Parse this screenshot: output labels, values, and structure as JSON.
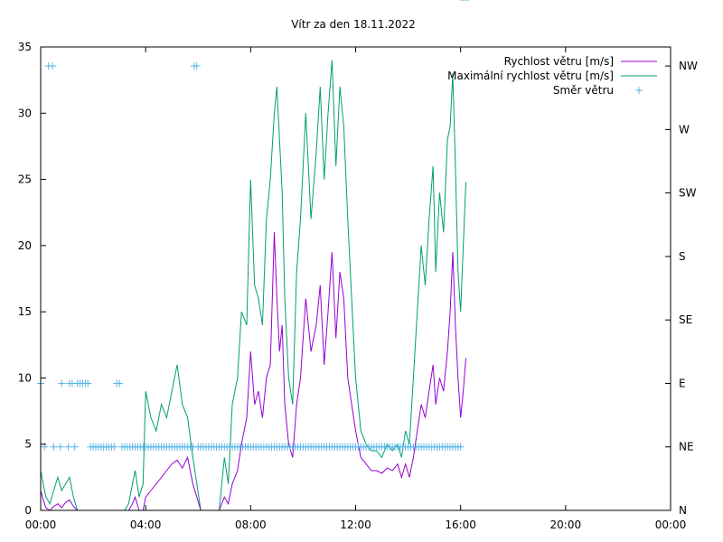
{
  "chart_data": {
    "type": "line",
    "title": "Vítr za den 18.11.2022",
    "xlabel": "",
    "ylabel": "",
    "x_tick_labels": [
      "00:00",
      "04:00",
      "08:00",
      "12:00",
      "16:00",
      "20:00",
      "00:00"
    ],
    "y_tick_labels": [
      "0",
      "5",
      "10",
      "15",
      "20",
      "25",
      "30",
      "35"
    ],
    "y2_tick_labels": [
      "N",
      "NE",
      "E",
      "SE",
      "S",
      "SW",
      "W",
      "NW"
    ],
    "xlim_hours": [
      0,
      24
    ],
    "ylim": [
      0,
      35
    ],
    "y2lim_index": [
      0,
      7.3
    ],
    "grid": false,
    "legend_position": "top-right",
    "colors": {
      "speed": "#9400d3",
      "max_speed": "#009e73",
      "direction": "#56b4e9",
      "axes": "#000000"
    },
    "series": [
      {
        "name": "Rychlost větru [m/s]",
        "color": "#9400d3",
        "x_hours": [
          0.0,
          0.1,
          0.2,
          0.35,
          0.5,
          0.65,
          0.8,
          0.95,
          1.1,
          1.25,
          1.4,
          1.6,
          2.0,
          2.5,
          3.0,
          3.2,
          3.35,
          3.5,
          3.6,
          3.75,
          3.9,
          4.0,
          4.2,
          4.4,
          4.6,
          4.8,
          5.0,
          5.2,
          5.4,
          5.6,
          5.8,
          5.95,
          6.1,
          6.25,
          6.4,
          6.6,
          6.8,
          7.0,
          7.15,
          7.3,
          7.5,
          7.65,
          7.85,
          8.0,
          8.15,
          8.3,
          8.45,
          8.6,
          8.75,
          8.9,
          9.0,
          9.1,
          9.2,
          9.3,
          9.45,
          9.6,
          9.75,
          9.9,
          10.1,
          10.3,
          10.5,
          10.65,
          10.8,
          10.95,
          11.1,
          11.25,
          11.4,
          11.55,
          11.7,
          11.85,
          12.0,
          12.2,
          12.4,
          12.6,
          12.8,
          13.0,
          13.2,
          13.4,
          13.6,
          13.75,
          13.9,
          14.05,
          14.2,
          14.35,
          14.5,
          14.65,
          14.8,
          14.95,
          15.05,
          15.2,
          15.35,
          15.5,
          15.6,
          15.7,
          15.8,
          15.9,
          16.0,
          16.1,
          16.2
        ],
        "values": [
          1.5,
          0.8,
          0.2,
          0.0,
          0.3,
          0.5,
          0.2,
          0.6,
          0.8,
          0.3,
          0.0,
          0.0,
          0.0,
          0.0,
          0.0,
          0.0,
          0.0,
          0.5,
          1.0,
          0.0,
          0.0,
          1.0,
          1.5,
          2.0,
          2.5,
          3.0,
          3.5,
          3.8,
          3.2,
          4.0,
          2.0,
          1.0,
          0.0,
          0.0,
          0.0,
          0.0,
          0.0,
          1.0,
          0.5,
          2.0,
          3.0,
          5.0,
          7.0,
          12.0,
          8.0,
          9.0,
          7.0,
          10.0,
          11.0,
          21.0,
          16.0,
          12.0,
          14.0,
          8.0,
          5.0,
          4.0,
          8.0,
          10.0,
          16.0,
          12.0,
          14.0,
          17.0,
          11.0,
          15.0,
          19.5,
          13.0,
          18.0,
          16.0,
          10.0,
          8.0,
          6.0,
          4.0,
          3.5,
          3.0,
          3.0,
          2.8,
          3.2,
          3.0,
          3.5,
          2.5,
          3.5,
          2.5,
          4.0,
          6.0,
          8.0,
          7.0,
          9.0,
          11.0,
          8.0,
          10.0,
          9.0,
          12.0,
          15.0,
          19.5,
          14.0,
          10.0,
          7.0,
          9.0,
          11.5
        ]
      },
      {
        "name": "Maximální rychlost větru [m/s]",
        "color": "#009e73",
        "x_hours": [
          0.0,
          0.1,
          0.2,
          0.35,
          0.5,
          0.65,
          0.8,
          0.95,
          1.1,
          1.25,
          1.4,
          1.6,
          2.0,
          2.5,
          3.0,
          3.2,
          3.35,
          3.5,
          3.6,
          3.75,
          3.9,
          4.0,
          4.2,
          4.4,
          4.6,
          4.8,
          5.0,
          5.2,
          5.4,
          5.6,
          5.8,
          5.95,
          6.1,
          6.25,
          6.4,
          6.6,
          6.8,
          7.0,
          7.15,
          7.3,
          7.5,
          7.65,
          7.85,
          8.0,
          8.15,
          8.3,
          8.45,
          8.6,
          8.75,
          8.9,
          9.0,
          9.1,
          9.2,
          9.3,
          9.45,
          9.6,
          9.75,
          9.9,
          10.1,
          10.3,
          10.5,
          10.65,
          10.8,
          10.95,
          11.1,
          11.25,
          11.4,
          11.55,
          11.7,
          11.85,
          12.0,
          12.2,
          12.4,
          12.6,
          12.8,
          13.0,
          13.2,
          13.4,
          13.6,
          13.75,
          13.9,
          14.05,
          14.2,
          14.35,
          14.5,
          14.65,
          14.8,
          14.95,
          15.05,
          15.2,
          15.35,
          15.5,
          15.6,
          15.7,
          15.8,
          15.9,
          16.0,
          16.1,
          16.2
        ],
        "values": [
          3.0,
          2.0,
          1.0,
          0.5,
          1.5,
          2.5,
          1.5,
          2.0,
          2.5,
          1.0,
          0.0,
          0.0,
          0.0,
          0.0,
          0.0,
          0.0,
          0.5,
          2.0,
          3.0,
          1.0,
          2.0,
          9.0,
          7.0,
          6.0,
          8.0,
          7.0,
          9.0,
          11.0,
          8.0,
          7.0,
          4.0,
          2.0,
          0.0,
          0.0,
          0.0,
          0.0,
          0.0,
          4.0,
          2.0,
          8.0,
          10.0,
          15.0,
          14.0,
          25.0,
          17.0,
          16.0,
          14.0,
          22.0,
          25.0,
          30.0,
          32.0,
          28.0,
          24.0,
          16.0,
          10.0,
          8.0,
          18.0,
          22.0,
          30.0,
          22.0,
          27.0,
          32.0,
          25.0,
          30.0,
          34.0,
          26.0,
          32.0,
          29.0,
          22.0,
          16.0,
          10.0,
          6.0,
          5.0,
          4.5,
          4.5,
          4.0,
          5.0,
          4.5,
          5.0,
          4.0,
          6.0,
          5.0,
          10.0,
          15.0,
          20.0,
          17.0,
          22.0,
          26.0,
          18.0,
          24.0,
          21.0,
          28.0,
          29.0,
          33.0,
          26.0,
          18.0,
          15.0,
          20.0,
          24.8
        ]
      },
      {
        "name": "Směr větru",
        "color": "#56b4e9",
        "marker": "+",
        "x_hours": [
          0.0,
          0.15,
          0.3,
          0.45,
          0.5,
          0.75,
          0.8,
          1.05,
          1.1,
          1.2,
          1.3,
          1.4,
          1.5,
          1.6,
          1.7,
          1.8,
          1.9,
          2.0,
          2.1,
          2.2,
          2.3,
          2.4,
          2.5,
          2.6,
          2.7,
          2.8,
          2.9,
          3.0,
          3.1,
          3.2,
          3.3,
          3.4,
          3.5,
          3.6,
          3.7,
          3.8,
          3.9,
          4.0,
          4.1,
          4.2,
          4.3,
          4.4,
          4.5,
          4.6,
          4.7,
          4.8,
          4.9,
          5.0,
          5.1,
          5.2,
          5.3,
          5.4,
          5.5,
          5.6,
          5.7,
          5.8,
          5.85,
          5.95,
          6.0,
          6.1,
          6.2,
          6.3,
          6.4,
          6.5,
          6.6,
          6.7,
          6.8,
          6.9,
          7.0,
          7.1,
          7.2,
          7.3,
          7.4,
          7.5,
          7.6,
          7.7,
          7.8,
          7.9,
          8.0,
          8.1,
          8.2,
          8.3,
          8.4,
          8.5,
          8.6,
          8.7,
          8.8,
          8.9,
          9.0,
          9.1,
          9.2,
          9.3,
          9.4,
          9.5,
          9.6,
          9.7,
          9.8,
          9.9,
          10.0,
          10.1,
          10.2,
          10.3,
          10.4,
          10.5,
          10.6,
          10.7,
          10.8,
          10.9,
          11.0,
          11.1,
          11.2,
          11.3,
          11.4,
          11.5,
          11.6,
          11.7,
          11.8,
          11.9,
          12.0,
          12.1,
          12.2,
          12.3,
          12.4,
          12.5,
          12.6,
          12.7,
          12.8,
          12.9,
          13.0,
          13.1,
          13.2,
          13.3,
          13.4,
          13.5,
          13.6,
          13.7,
          13.8,
          13.9,
          14.0,
          14.1,
          14.2,
          14.3,
          14.4,
          14.5,
          14.6,
          14.7,
          14.8,
          14.9,
          15.0,
          15.1,
          15.2,
          15.3,
          15.4,
          15.5,
          15.6,
          15.7,
          15.8,
          15.9,
          16.0,
          16.1,
          16.2
        ],
        "values": [
          "E",
          "NE",
          "NW",
          "NW",
          "NE",
          "NE",
          "E",
          "NE",
          "E",
          "E",
          "NE",
          "E",
          "E",
          "E",
          "E",
          "E",
          "NE",
          "NE",
          "NE",
          "NE",
          "NE",
          "NE",
          "NE",
          "NE",
          "NE",
          "NE",
          "E",
          "E",
          "NE",
          "NE",
          "NE",
          "NE",
          "NE",
          "NE",
          "NE",
          "NE",
          "NE",
          "NE",
          "NE",
          "NE",
          "NE",
          "NE",
          "NE",
          "NE",
          "NE",
          "NE",
          "NE",
          "NE",
          "NE",
          "NE",
          "NE",
          "NE",
          "NE",
          "NE",
          "NE",
          "NE",
          "NW",
          "NW",
          "NE",
          "NE",
          "NE",
          "NE",
          "NE",
          "NE",
          "NE",
          "NE",
          "NE",
          "NE",
          "NE",
          "NE",
          "NE",
          "NE",
          "NE",
          "NE",
          "NE",
          "NE",
          "NE",
          "NE",
          "NE",
          "NE",
          "NE",
          "NE",
          "NE",
          "NE",
          "NE",
          "NE",
          "NE",
          "NE",
          "NE",
          "NE",
          "NE",
          "NE",
          "NE",
          "NE",
          "NE",
          "NE",
          "NE",
          "NE",
          "NE",
          "NE",
          "NE",
          "NE",
          "NE",
          "NE",
          "NE",
          "NE",
          "NE",
          "NE",
          "NE",
          "NE",
          "NE",
          "NE",
          "NE",
          "NE",
          "NE",
          "NE",
          "NE",
          "NE",
          "NE",
          "NE",
          "NE",
          "NE",
          "NE",
          "NE",
          "NE",
          "NE",
          "NE",
          "NE",
          "NE",
          "NE",
          "NE",
          "NE",
          "NE",
          "NE",
          "NE",
          "NE",
          "NE",
          "NE",
          "NE",
          "NE",
          "NE",
          "NE",
          "NE",
          "NE",
          "NE",
          "NE",
          "NE",
          "NE",
          "NE",
          "NE",
          "NE",
          "NE",
          "NE",
          "NE",
          "NE",
          "NE",
          "NE",
          "NE",
          "NE"
        ]
      }
    ]
  }
}
